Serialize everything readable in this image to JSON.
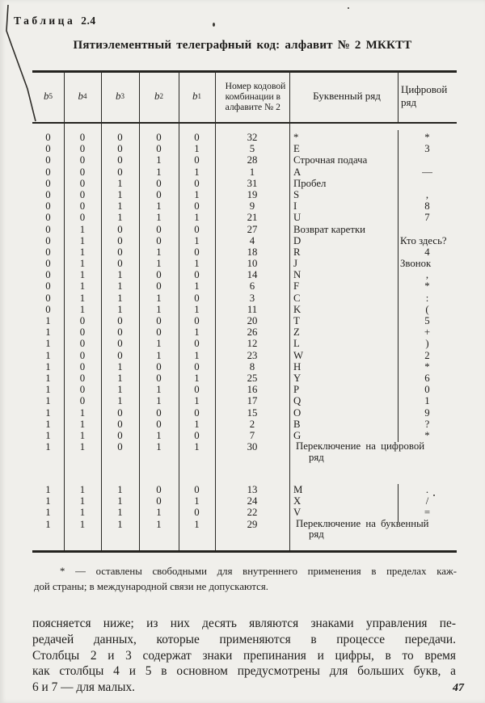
{
  "page": {
    "table_label_word": "Таблица",
    "table_label_number": "2.4",
    "title": "Пятиэлементный телеграфный код: алфавит № 2 МККТТ",
    "page_number": "47"
  },
  "table": {
    "header": {
      "bit_base": "b",
      "bit_subscripts": [
        "5",
        "4",
        "3",
        "2",
        "1"
      ],
      "num_lines": [
        "Номер кодовой",
        "комбинации в",
        "алфавите № 2"
      ],
      "letter_col": "Буквенный ряд",
      "digit_col": "Цифровой ряд"
    },
    "rows_main": [
      {
        "code": "00000",
        "num": "32",
        "letter": "*",
        "digit": "*"
      },
      {
        "code": "00001",
        "num": "5",
        "letter": "E",
        "digit": "3"
      },
      {
        "code": "00010",
        "num": "28",
        "letter": "Строчная подача",
        "digit": ""
      },
      {
        "code": "00011",
        "num": "1",
        "letter": "A",
        "digit": "—"
      },
      {
        "code": "00100",
        "num": "31",
        "letter": "Пробел",
        "digit": ""
      },
      {
        "code": "00101",
        "num": "19",
        "letter": "S",
        "digit": ","
      },
      {
        "code": "00110",
        "num": "9",
        "letter": "I",
        "digit": "8"
      },
      {
        "code": "00111",
        "num": "21",
        "letter": "U",
        "digit": "7"
      },
      {
        "code": "01000",
        "num": "27",
        "letter": "Возврат каретки",
        "digit": ""
      },
      {
        "code": "01001",
        "num": "4",
        "letter": "D",
        "digit": "Кто здесь?"
      },
      {
        "code": "01010",
        "num": "18",
        "letter": "R",
        "digit": "4"
      },
      {
        "code": "01011",
        "num": "10",
        "letter": "J",
        "digit": "Звонок"
      },
      {
        "code": "01100",
        "num": "14",
        "letter": "N",
        "digit": ","
      },
      {
        "code": "01101",
        "num": "6",
        "letter": "F",
        "digit": "*"
      },
      {
        "code": "01110",
        "num": "3",
        "letter": "C",
        "digit": ":"
      },
      {
        "code": "01111",
        "num": "11",
        "letter": "K",
        "digit": "("
      },
      {
        "code": "10000",
        "num": "20",
        "letter": "T",
        "digit": "5"
      },
      {
        "code": "10001",
        "num": "26",
        "letter": "Z",
        "digit": "+"
      },
      {
        "code": "10010",
        "num": "12",
        "letter": "L",
        "digit": ")"
      },
      {
        "code": "10011",
        "num": "23",
        "letter": "W",
        "digit": "2"
      },
      {
        "code": "10100",
        "num": "8",
        "letter": "H",
        "digit": "*"
      },
      {
        "code": "10101",
        "num": "25",
        "letter": "Y",
        "digit": "6"
      },
      {
        "code": "10110",
        "num": "16",
        "letter": "P",
        "digit": "0"
      },
      {
        "code": "10111",
        "num": "17",
        "letter": "Q",
        "digit": "1"
      },
      {
        "code": "11000",
        "num": "15",
        "letter": "O",
        "digit": "9"
      },
      {
        "code": "11001",
        "num": "2",
        "letter": "B",
        "digit": "?"
      },
      {
        "code": "11010",
        "num": "7",
        "letter": "G",
        "digit": "*"
      },
      {
        "code": "11011",
        "num": "30",
        "letter": "Переключение на цифровой",
        "letter2": "ряд"
      }
    ],
    "rows_second": [
      {
        "code": "11100",
        "num": "13",
        "letter": "M",
        "digit": "."
      },
      {
        "code": "11101",
        "num": "24",
        "letter": "X",
        "digit": "/"
      },
      {
        "code": "11110",
        "num": "22",
        "letter": "V",
        "digit": "="
      },
      {
        "code": "11111",
        "num": "29",
        "letter": "Переключение на буквенный",
        "letter2": "ряд"
      }
    ]
  },
  "footnote": {
    "line1": "* — оставлены свободными для внутреннего применения в пределах каж-",
    "line2": "дой страны; в международной связи не допускаются."
  },
  "paragraph": {
    "lines": [
      "поясняется ниже; из них десять являются знаками управления пе-",
      "редачей данных, которые применяются в процессе передачи.",
      "Столбцы 2 и 3 содержат знаки препинания и цифры,  в то время",
      "как столбцы 4 и 5 в основном предусмотрены для больших букв, а",
      "6 и 7 — для малых."
    ]
  }
}
